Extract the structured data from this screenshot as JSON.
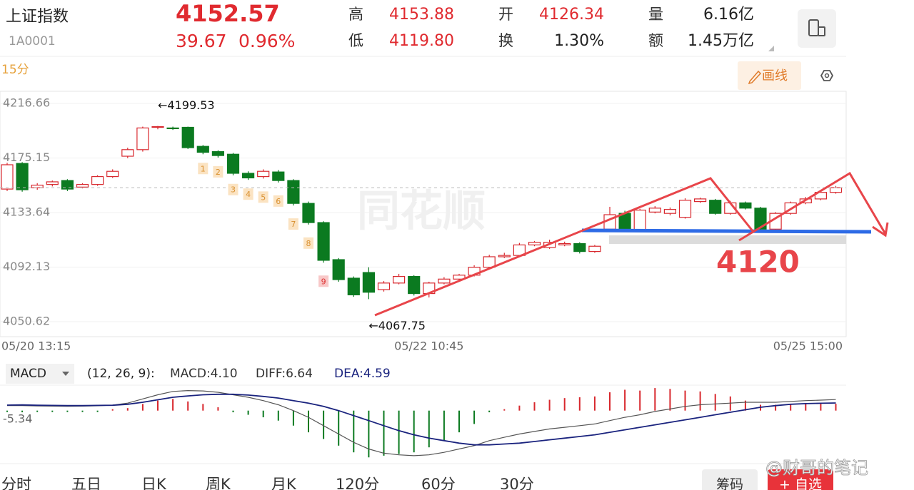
{
  "header": {
    "name": "上证指数",
    "code": "1A0001",
    "price": "4152.57",
    "change": "39.67",
    "change_pct": "0.96%",
    "stats": [
      {
        "label": "高",
        "value": "4153.88"
      },
      {
        "label": "低",
        "value": "4119.80"
      },
      {
        "label": "开",
        "value": "4126.34"
      },
      {
        "label": "换",
        "value": "1.30%"
      },
      {
        "label": "量",
        "value": "6.16亿"
      },
      {
        "label": "额",
        "value": "1.45万亿"
      }
    ]
  },
  "toolbar": {
    "period": "15分",
    "draw_button": "画线"
  },
  "watermark": "同花顺",
  "chart_data": {
    "type": "candlestick",
    "up_color": "#d8282e",
    "down_color": "#0b7a20",
    "categories": [
      "05/20 13:15",
      null,
      null,
      null,
      null,
      null,
      null,
      null,
      null,
      null,
      null,
      null,
      null,
      null,
      null,
      null,
      null,
      null,
      null,
      null,
      null,
      null,
      null,
      null,
      null,
      null,
      null,
      null,
      "05/22 10:45",
      null,
      null,
      null,
      null,
      null,
      null,
      null,
      null,
      null,
      null,
      null,
      null,
      null,
      null,
      null,
      null,
      null,
      null,
      null,
      null,
      null,
      null,
      null,
      null,
      null,
      null,
      "05/25 15:00"
    ],
    "open": [
      4151.5,
      4171,
      4152.5,
      4155,
      4158,
      4153,
      4155,
      4161,
      4176.5,
      4181.5,
      4198.5,
      4198,
      4198.5,
      4184,
      4180,
      4178,
      4163.5,
      4161,
      4164.5,
      4158,
      4140.6,
      4126,
      4097.8,
      4083.7,
      4088,
      4075,
      4080,
      4085,
      4072,
      4080,
      4083,
      4086,
      4092,
      4100,
      4101,
      4109,
      4107,
      4109,
      4110,
      4104,
      4121,
      4133,
      4120.5,
      4134,
      4133,
      4130,
      4142,
      4143,
      4133,
      4141,
      4137,
      4121,
      4133,
      4141,
      4144,
      4149
    ],
    "high": [
      4171.5,
      4172,
      4156,
      4158,
      4159,
      4156,
      4162,
      4166.5,
      4183,
      4199,
      4199.53,
      4199,
      4199,
      4185,
      4181,
      4179,
      4165,
      4166.5,
      4166,
      4159,
      4142,
      4127,
      4099,
      4085,
      4092,
      4081.5,
      4087,
      4086,
      4081,
      4084.5,
      4087,
      4093.5,
      4101.5,
      4103,
      4110.5,
      4112,
      4113,
      4111.5,
      4111,
      4109,
      4138,
      4135,
      4136.5,
      4138.5,
      4137.5,
      4144.5,
      4145,
      4144,
      4142.5,
      4142,
      4138,
      4134,
      4142,
      4145.5,
      4150,
      4153.88
    ],
    "low": [
      4150,
      4149.5,
      4151,
      4153.5,
      4150,
      4152,
      4154,
      4160,
      4175,
      4180,
      4197,
      4196.5,
      4182,
      4178,
      4175.5,
      4162,
      4158.5,
      4159.5,
      4156.5,
      4139,
      4124.5,
      4095.5,
      4081,
      4069.5,
      4067.75,
      4073.5,
      4079,
      4070.5,
      4069,
      4079,
      4082,
      4085,
      4091,
      4099,
      4100,
      4108,
      4106,
      4108,
      4102.5,
      4103,
      4120,
      4120,
      4120,
      4133,
      4131.5,
      4129,
      4141,
      4132,
      4132,
      4136,
      4119.8,
      4120.5,
      4132,
      4140,
      4143,
      4148
    ],
    "close": [
      4170,
      4151,
      4154.5,
      4157,
      4151.5,
      4155,
      4161,
      4165,
      4181.5,
      4198,
      4199,
      4197.5,
      4183,
      4179.5,
      4177,
      4163.5,
      4160,
      4165,
      4158,
      4140.6,
      4126,
      4097.3,
      4082.6,
      4071,
      4073,
      4080,
      4085,
      4072,
      4080,
      4083,
      4086,
      4092,
      4100,
      4101,
      4109,
      4111,
      4111,
      4110,
      4104,
      4108,
      4132,
      4120.5,
      4135.5,
      4137,
      4136,
      4143,
      4144,
      4133,
      4141,
      4137,
      4121,
      4133,
      4141,
      4144,
      4149,
      4152.57
    ],
    "ylim": [
      4039.2,
      4225.9
    ],
    "yticks": [
      4216.66,
      4175.15,
      4133.64,
      4092.13,
      4050.62
    ],
    "grid": true,
    "high_label": "←4199.53",
    "low_label": "←4067.75",
    "markers": [
      "1",
      "2",
      "3",
      "4",
      "5",
      "6",
      "7",
      "8",
      "9"
    ],
    "annotation": "4120"
  },
  "macd": {
    "title": "MACD",
    "params": "(12, 26, 9):",
    "macd_label": "MACD:4.10",
    "diff_label": "DIFF:6.64",
    "dea_label": "DEA:4.59",
    "diff_color": "#555555",
    "dea_color": "#1a237e",
    "ylim": [
      -30.9,
      14.4
    ],
    "yticks": [
      -5.34
    ],
    "hist": [
      -0.6,
      -1,
      -0.8,
      -0.8,
      -0.6,
      -0.4,
      -0.2,
      0.3,
      1.5,
      4,
      6,
      7,
      5.5,
      4,
      2,
      -1,
      -2.5,
      -4,
      -6,
      -9,
      -13,
      -17,
      -21,
      -25,
      -28,
      -27,
      -26,
      -25,
      -22,
      -18,
      -13,
      -8,
      -1,
      0.5,
      3,
      5,
      6.5,
      7.5,
      8,
      8.5,
      11,
      12.5,
      12,
      13.5,
      13,
      12,
      11.5,
      10,
      8.5,
      6,
      3.5,
      3.5,
      4,
      4,
      4.2,
      4.1
    ],
    "diff": [
      3,
      3,
      2.8,
      2.7,
      2.6,
      2.7,
      2.9,
      3.3,
      4.5,
      7,
      9.5,
      11.5,
      12,
      11.8,
      11,
      9.5,
      8,
      6,
      3.5,
      0,
      -4,
      -9,
      -14,
      -19,
      -23,
      -25.5,
      -26.5,
      -27,
      -26.5,
      -25,
      -23,
      -21,
      -18,
      -16,
      -14,
      -12.5,
      -11,
      -10,
      -9,
      -8,
      -6,
      -4,
      -2.5,
      -0.5,
      1,
      2.5,
      3.5,
      4,
      4.5,
      5,
      5,
      5,
      5.5,
      6,
      6.3,
      6.64
    ],
    "dea": [
      3.3,
      3.4,
      3.2,
      3.1,
      3,
      3,
      3.1,
      3.2,
      3.8,
      5,
      6.5,
      8,
      8.8,
      9.5,
      9.8,
      9.8,
      9.3,
      8.5,
      7.5,
      6,
      4.5,
      2.5,
      0,
      -3,
      -6,
      -9,
      -12,
      -14.5,
      -16.5,
      -18,
      -19.5,
      -20.5,
      -20.5,
      -20,
      -19.5,
      -18.5,
      -17.5,
      -16.5,
      -15.5,
      -14.5,
      -13,
      -11.5,
      -10,
      -8.5,
      -7,
      -5.5,
      -4,
      -2.5,
      -1,
      0.5,
      2,
      3,
      3.8,
      4.2,
      4.4,
      4.59
    ]
  },
  "tabs": [
    "分时",
    "五日",
    "日K",
    "周K",
    "月K",
    "120分",
    "60分",
    "30分"
  ],
  "actions": [
    "筹码",
    "+ 自选"
  ],
  "credit": "@财哥的笔记"
}
